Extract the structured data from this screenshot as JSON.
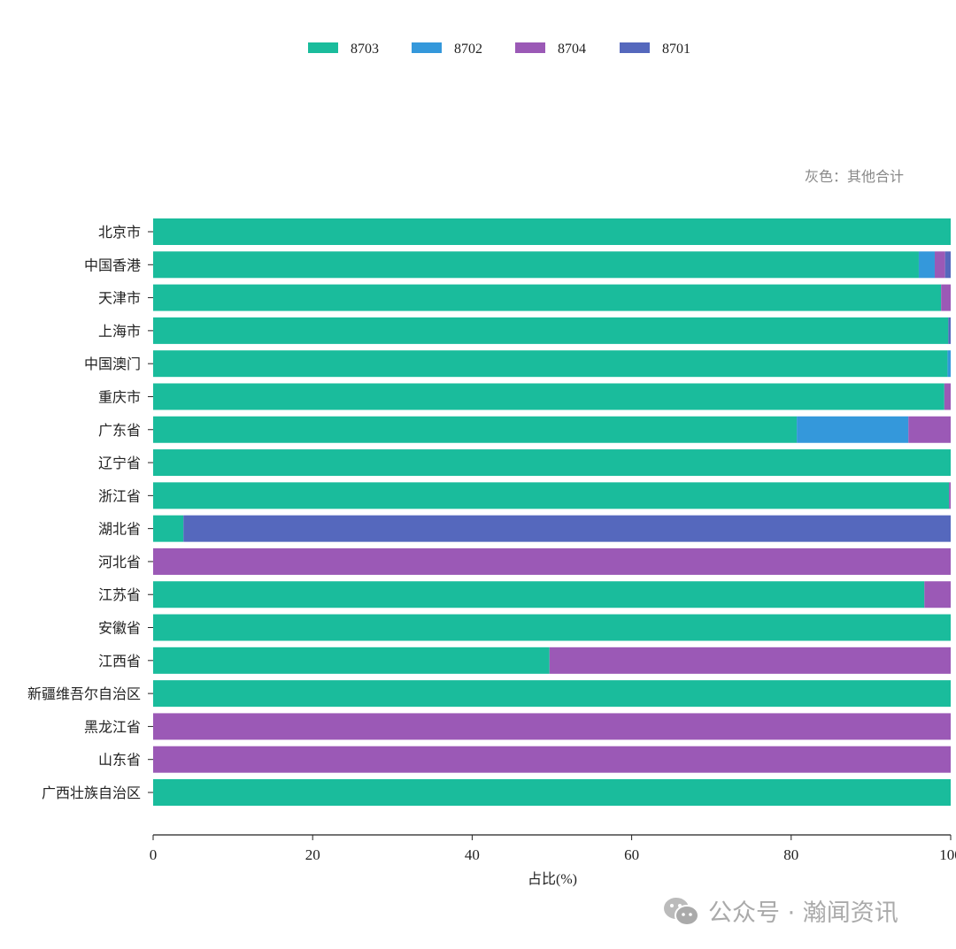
{
  "chart_data": {
    "type": "bar",
    "orientation": "horizontal",
    "stacked": true,
    "annotation": "灰色：其他合计",
    "xlabel": "占比(%)",
    "ylabel": "",
    "xlim": [
      0,
      100
    ],
    "xticks": [
      "0",
      "20",
      "40",
      "60",
      "80",
      "100"
    ],
    "grid": false,
    "legend_position": "top-center",
    "categories": [
      "北京市",
      "中国香港",
      "天津市",
      "上海市",
      "中国澳门",
      "重庆市",
      "广东省",
      "辽宁省",
      "浙江省",
      "湖北省",
      "河北省",
      "江苏省",
      "安徽省",
      "江西省",
      "新疆维吾尔自治区",
      "黑龙江省",
      "山东省",
      "广西壮族自治区"
    ],
    "series": [
      {
        "name": "8703",
        "color": "#1abc9c",
        "values": [
          100,
          96.0,
          98.8,
          99.7,
          99.6,
          99.2,
          80.7,
          100,
          99.8,
          3.8,
          0,
          96.7,
          100,
          49.7,
          100,
          0,
          0,
          100
        ]
      },
      {
        "name": "8702",
        "color": "#3498db",
        "values": [
          0,
          2.0,
          0,
          0,
          0.4,
          0,
          14.0,
          0,
          0,
          0,
          0,
          0,
          0,
          0,
          0,
          0,
          0,
          0
        ]
      },
      {
        "name": "8704",
        "color": "#9b59b6",
        "values": [
          0,
          1.3,
          1.2,
          0,
          0,
          0.8,
          5.3,
          0,
          0.2,
          0,
          100,
          3.3,
          0,
          50.3,
          0,
          100,
          100,
          0
        ]
      },
      {
        "name": "8701",
        "color": "#5568bd",
        "values": [
          0,
          0.7,
          0,
          0.3,
          0,
          0,
          0,
          0,
          0,
          96.2,
          0,
          0,
          0,
          0,
          0,
          0,
          0,
          0
        ]
      }
    ]
  },
  "watermark": {
    "text": "公众号 · 瀚闻资讯",
    "icon": "wechat-icon"
  }
}
